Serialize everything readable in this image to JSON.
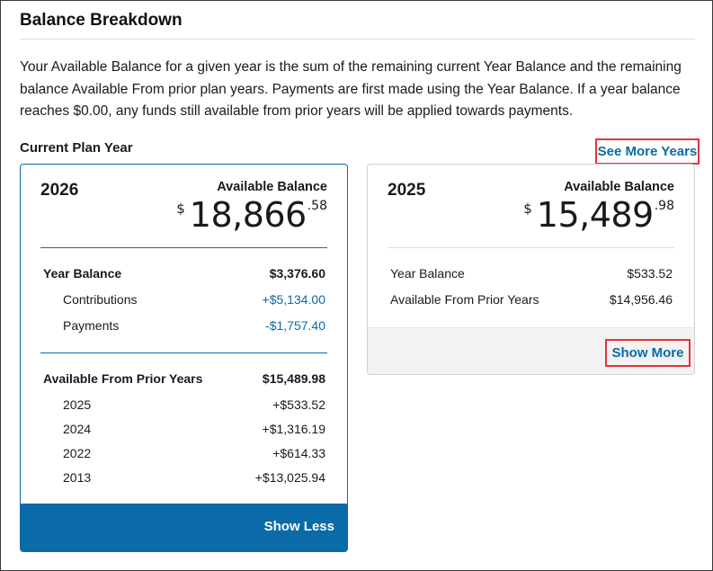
{
  "header": {
    "title": "Balance Breakdown",
    "description": "Your Available Balance for a given year is the sum of the remaining current Year Balance and the remaining balance Available From prior plan years. Payments are first made using the Year Balance. If a year balance reaches $0.00, any funds still available from prior years will be applied towards payments."
  },
  "section": {
    "current_label": "Current Plan Year",
    "see_more_label": "See More Years"
  },
  "current_card": {
    "year": "2026",
    "available_label": "Available Balance",
    "currency": "$",
    "amount_whole": "18,866",
    "amount_cents": ".58",
    "year_balance_label": "Year Balance",
    "year_balance_value": "$3,376.60",
    "contributions_label": "Contributions",
    "contributions_value": "+$5,134.00",
    "payments_label": "Payments",
    "payments_value": "-$1,757.40",
    "prior_label": "Available From Prior Years",
    "prior_value": "$15,489.98",
    "prior_items": [
      {
        "year": "2025",
        "value": "+$533.52"
      },
      {
        "year": "2024",
        "value": "+$1,316.19"
      },
      {
        "year": "2022",
        "value": "+$614.33"
      },
      {
        "year": "2013",
        "value": "+$13,025.94"
      }
    ],
    "show_less_label": "Show Less"
  },
  "prior_card": {
    "year": "2025",
    "available_label": "Available Balance",
    "currency": "$",
    "amount_whole": "15,489",
    "amount_cents": ".98",
    "year_balance_label": "Year Balance",
    "year_balance_value": "$533.52",
    "prior_label": "Available From Prior Years",
    "prior_value": "$14,956.46",
    "show_more_label": "Show More"
  },
  "colors": {
    "accent": "#0b6aa8",
    "highlight": "#e0353b"
  }
}
